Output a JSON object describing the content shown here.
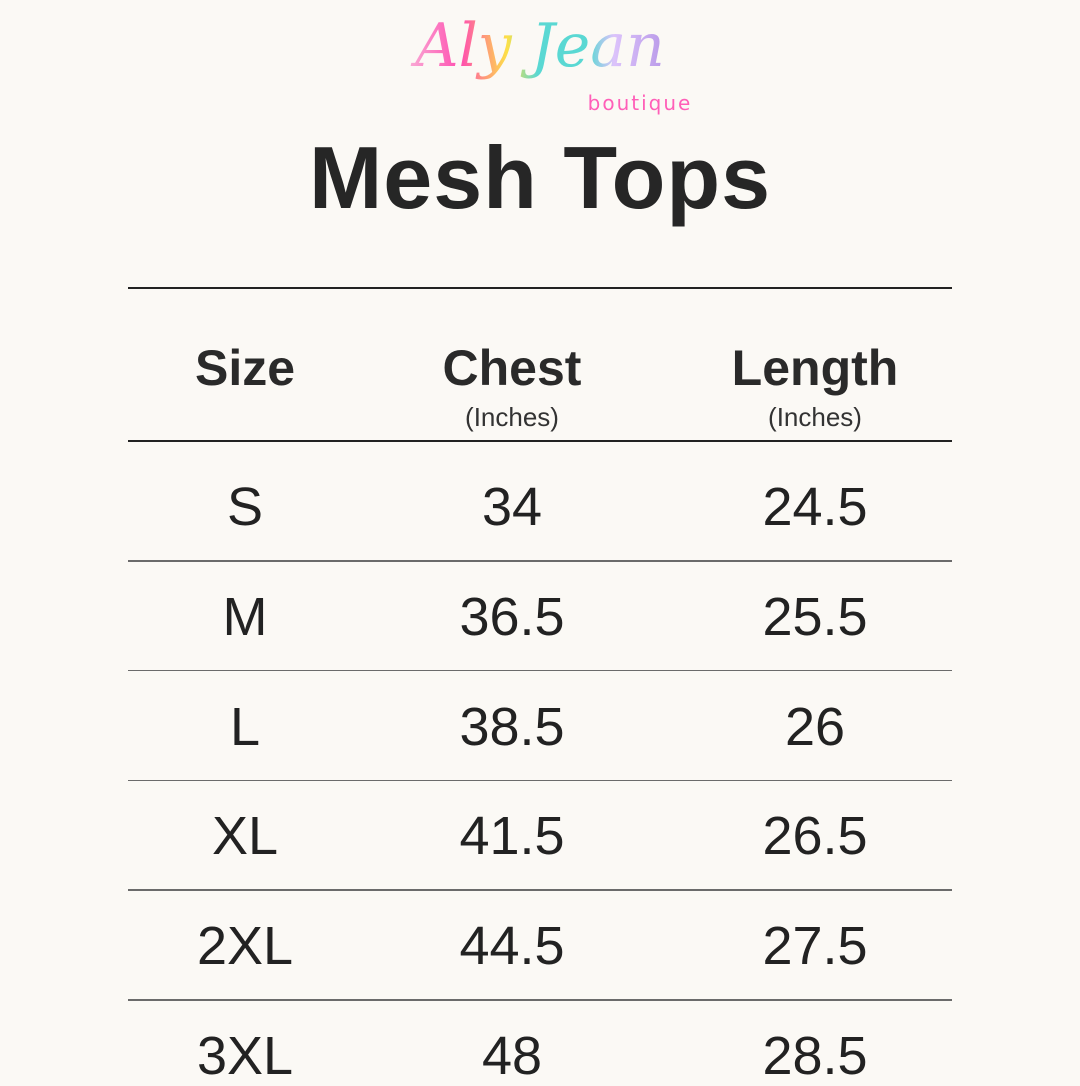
{
  "logo": {
    "script_text": "Aly Jean",
    "sub_text": "boutique",
    "colors": [
      "#f9a8d4",
      "#ff4fb0",
      "#fde047",
      "#5ad8d3",
      "#dcc3fb",
      "#b99ae8"
    ]
  },
  "title": "Mesh Tops",
  "table": {
    "headers": [
      {
        "label": "Size",
        "unit": ""
      },
      {
        "label": "Chest",
        "unit": "(Inches)"
      },
      {
        "label": "Length",
        "unit": "(Inches)"
      }
    ],
    "rows": [
      [
        "S",
        "34",
        "24.5"
      ],
      [
        "M",
        "36.5",
        "25.5"
      ],
      [
        "L",
        "38.5",
        "26"
      ],
      [
        "XL",
        "41.5",
        "26.5"
      ],
      [
        "2XL",
        "44.5",
        "27.5"
      ],
      [
        "3XL",
        "48",
        "28.5"
      ]
    ]
  }
}
